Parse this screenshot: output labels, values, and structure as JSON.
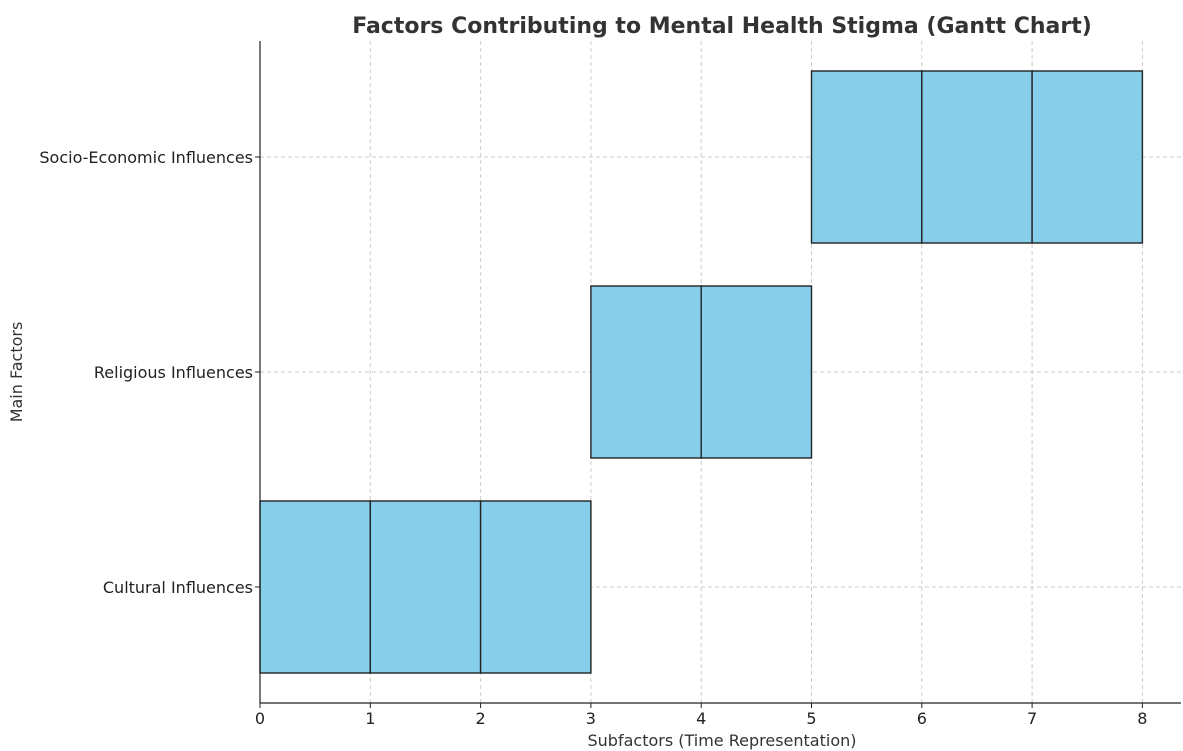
{
  "chart_data": {
    "type": "bar",
    "orientation": "horizontal",
    "title": "Factors Contributing to Mental Health Stigma (Gantt Chart)",
    "xlabel": "Subfactors (Time Representation)",
    "ylabel": "Main Factors",
    "xlim": [
      0,
      8.35
    ],
    "xticks": [
      0,
      1,
      2,
      3,
      4,
      5,
      6,
      7,
      8
    ],
    "categories": [
      "Cultural Influences",
      "Religious Influences",
      "Socio-Economic Influences"
    ],
    "bars": [
      {
        "category": "Cultural Influences",
        "start": 0,
        "end": 1
      },
      {
        "category": "Cultural Influences",
        "start": 1,
        "end": 2
      },
      {
        "category": "Cultural Influences",
        "start": 2,
        "end": 3
      },
      {
        "category": "Religious Influences",
        "start": 3,
        "end": 4
      },
      {
        "category": "Religious Influences",
        "start": 4,
        "end": 5
      },
      {
        "category": "Socio-Economic Influences",
        "start": 5,
        "end": 6
      },
      {
        "category": "Socio-Economic Influences",
        "start": 6,
        "end": 7
      },
      {
        "category": "Socio-Economic Influences",
        "start": 7,
        "end": 8
      }
    ],
    "bar_color": "#87CEEB",
    "edge_color": "#222222",
    "grid": true
  }
}
